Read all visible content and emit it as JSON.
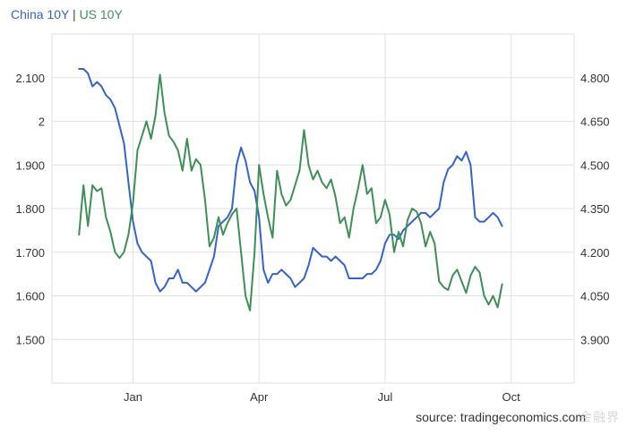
{
  "legend": {
    "china_label": "China 10Y",
    "separator": "|",
    "us_label": "US 10Y"
  },
  "source_text": "source: tradingeconomics.com",
  "watermark_text": "金融界",
  "colors": {
    "china": "#3563c9",
    "us": "#3f8f57",
    "grid": "#e2e2e2",
    "axis_text": "#333333"
  },
  "chart_data": {
    "type": "line",
    "title": "",
    "x_ticks": [
      "Jan",
      "Apr",
      "Jul",
      "Oct"
    ],
    "x_tick_index": [
      12,
      40,
      68,
      96
    ],
    "x_range": [
      -6,
      110
    ],
    "left_axis": {
      "ticks": [
        "2.100",
        "2",
        "1.900",
        "1.800",
        "1.700",
        "1.600",
        "1.500"
      ],
      "tick_values": [
        2.1,
        2.0,
        1.9,
        1.8,
        1.7,
        1.6,
        1.5
      ],
      "ylim": [
        1.4,
        2.2
      ]
    },
    "right_axis": {
      "ticks": [
        "4.800",
        "4.650",
        "4.500",
        "4.350",
        "4.200",
        "4.050",
        "3.900"
      ],
      "tick_values": [
        4.8,
        4.65,
        4.5,
        4.35,
        4.2,
        4.05,
        3.9
      ],
      "ylim": [
        3.75,
        4.95
      ]
    },
    "grid": true,
    "series": [
      {
        "name": "China 10Y",
        "axis": "left",
        "color": "#3563c9",
        "values": [
          2.12,
          2.12,
          2.11,
          2.08,
          2.09,
          2.08,
          2.06,
          2.05,
          2.03,
          1.99,
          1.95,
          1.86,
          1.77,
          1.72,
          1.7,
          1.69,
          1.68,
          1.63,
          1.61,
          1.62,
          1.64,
          1.64,
          1.66,
          1.63,
          1.63,
          1.62,
          1.61,
          1.62,
          1.63,
          1.66,
          1.69,
          1.76,
          1.77,
          1.78,
          1.8,
          1.9,
          1.94,
          1.91,
          1.86,
          1.84,
          1.78,
          1.66,
          1.63,
          1.65,
          1.65,
          1.66,
          1.65,
          1.64,
          1.62,
          1.63,
          1.64,
          1.67,
          1.71,
          1.7,
          1.69,
          1.69,
          1.68,
          1.69,
          1.68,
          1.67,
          1.64,
          1.64,
          1.64,
          1.64,
          1.65,
          1.65,
          1.66,
          1.68,
          1.72,
          1.74,
          1.74,
          1.73,
          1.75,
          1.76,
          1.77,
          1.78,
          1.79,
          1.79,
          1.78,
          1.79,
          1.8,
          1.86,
          1.89,
          1.9,
          1.92,
          1.91,
          1.93,
          1.9,
          1.78,
          1.77,
          1.77,
          1.78,
          1.79,
          1.78,
          1.76
        ]
      },
      {
        "name": "US 10Y",
        "axis": "right",
        "color": "#3f8f57",
        "values": [
          4.26,
          4.43,
          4.29,
          4.43,
          4.41,
          4.42,
          4.32,
          4.27,
          4.2,
          4.18,
          4.2,
          4.26,
          4.37,
          4.55,
          4.6,
          4.65,
          4.59,
          4.67,
          4.81,
          4.68,
          4.6,
          4.58,
          4.55,
          4.48,
          4.59,
          4.48,
          4.52,
          4.5,
          4.38,
          4.22,
          4.25,
          4.32,
          4.26,
          4.3,
          4.33,
          4.35,
          4.2,
          4.05,
          4.0,
          4.2,
          4.5,
          4.4,
          4.32,
          4.25,
          4.48,
          4.4,
          4.36,
          4.38,
          4.43,
          4.48,
          4.62,
          4.5,
          4.45,
          4.48,
          4.44,
          4.42,
          4.45,
          4.39,
          4.3,
          4.32,
          4.25,
          4.35,
          4.42,
          4.5,
          4.4,
          4.42,
          4.3,
          4.32,
          4.38,
          4.33,
          4.2,
          4.27,
          4.22,
          4.31,
          4.35,
          4.34,
          4.3,
          4.22,
          4.27,
          4.23,
          4.1,
          4.08,
          4.07,
          4.12,
          4.14,
          4.1,
          4.06,
          4.12,
          4.15,
          4.13,
          4.05,
          4.02,
          4.05,
          4.01,
          4.09
        ]
      }
    ]
  }
}
